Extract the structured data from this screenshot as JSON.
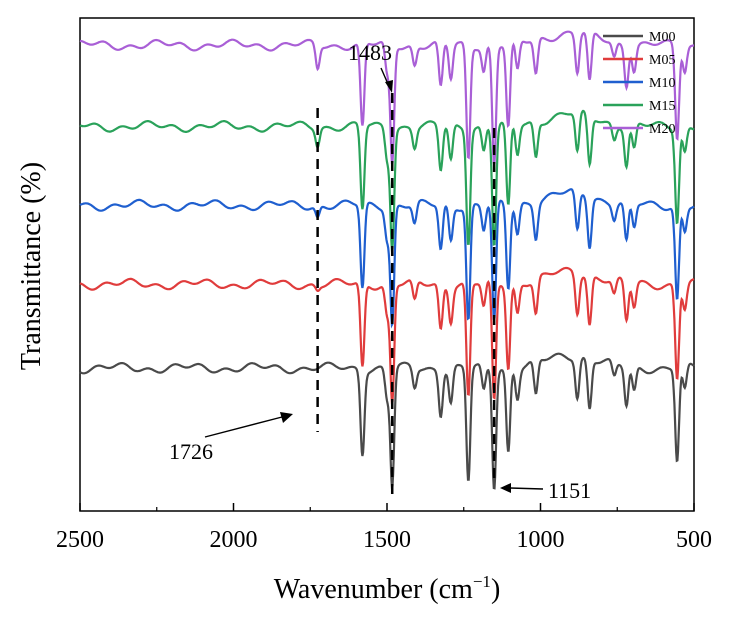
{
  "chart_data": {
    "type": "line",
    "title": "",
    "xlabel": "Wavenumber (cm",
    "xlabel_sup": "−1",
    "xlabel_suffix": ")",
    "ylabel": "Transmittance (%)",
    "xlim": [
      2500,
      500
    ],
    "x_reversed": true,
    "ylim": [
      0,
      10
    ],
    "grid": false,
    "legend_position": "top-right",
    "x_ticks": [
      2500,
      2000,
      1500,
      1000,
      500
    ],
    "x_tick_labels": [
      "2500",
      "2000",
      "1500",
      "1000",
      "500"
    ],
    "series": [
      {
        "name": "M00",
        "color": "#4a4a4a",
        "offset": 2.9,
        "c1726": 0.0
      },
      {
        "name": "M05",
        "color": "#e03c3c",
        "offset": 4.6,
        "c1726": 0.15
      },
      {
        "name": "M10",
        "color": "#1f5fcf",
        "offset": 6.2,
        "c1726": 0.35
      },
      {
        "name": "M15",
        "color": "#2aa25a",
        "offset": 7.8,
        "c1726": 0.55
      },
      {
        "name": "M20",
        "color": "#a95fd6",
        "offset": 9.45,
        "c1726": 0.75
      }
    ],
    "peaks": [
      {
        "x": 1726,
        "d": 0.65
      },
      {
        "x": 1580,
        "d": 1.7
      },
      {
        "x": 1500,
        "d": 0.6
      },
      {
        "x": 1483,
        "d": 2.4
      },
      {
        "x": 1410,
        "d": 0.4
      },
      {
        "x": 1325,
        "d": 0.9
      },
      {
        "x": 1292,
        "d": 0.7
      },
      {
        "x": 1235,
        "d": 2.3
      },
      {
        "x": 1185,
        "d": 0.5
      },
      {
        "x": 1151,
        "d": 2.4
      },
      {
        "x": 1105,
        "d": 1.7
      },
      {
        "x": 1075,
        "d": 0.6
      },
      {
        "x": 1015,
        "d": 0.7
      },
      {
        "x": 880,
        "d": 0.8
      },
      {
        "x": 840,
        "d": 1.0
      },
      {
        "x": 760,
        "d": 0.3
      },
      {
        "x": 720,
        "d": 0.8
      },
      {
        "x": 695,
        "d": 0.5
      },
      {
        "x": 555,
        "d": 1.9
      },
      {
        "x": 530,
        "d": 0.5
      }
    ],
    "dashed_lines": [
      1726,
      1483,
      1151
    ],
    "annotations": [
      {
        "text": "1726",
        "x": 1726
      },
      {
        "text": "1483",
        "x": 1483
      },
      {
        "text": "1151",
        "x": 1151
      }
    ]
  }
}
